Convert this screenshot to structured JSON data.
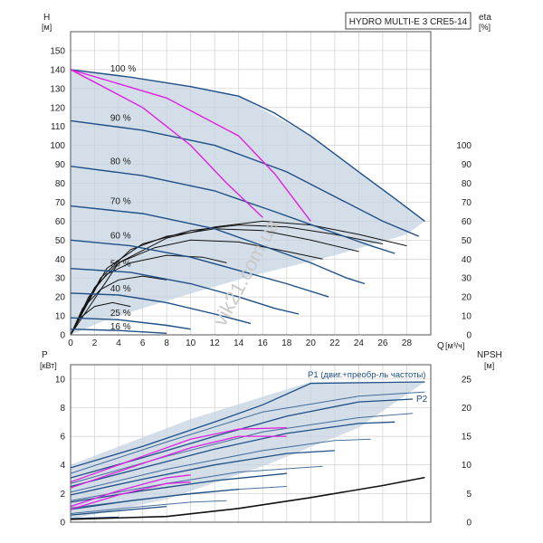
{
  "chart_data": [
    {
      "type": "line",
      "title": "HYDRO MULTI-E 3 CRE5-14",
      "ylabel": "H",
      "yunit": "[м]",
      "y2label": "eta",
      "y2unit": "[%]",
      "xlabel": "Q",
      "xunit": "[м³/ч]",
      "xlim": [
        0,
        30
      ],
      "ylim": [
        0,
        160
      ],
      "y2lim": [
        0,
        160
      ],
      "x_ticks": [
        0,
        2,
        4,
        6,
        8,
        10,
        12,
        14,
        16,
        18,
        20,
        22,
        24,
        26,
        28
      ],
      "y_ticks": [
        0,
        10,
        20,
        30,
        40,
        50,
        60,
        70,
        80,
        90,
        100,
        110,
        120,
        130,
        140,
        150
      ],
      "y2_ticks": [
        0,
        10,
        20,
        30,
        40,
        50,
        60,
        70,
        80,
        90,
        100
      ],
      "speed_labels": [
        {
          "label": "100 %",
          "x": 1.8,
          "y": 138
        },
        {
          "label": "90 %",
          "x": 1.8,
          "y": 112
        },
        {
          "label": "80 %",
          "x": 1.8,
          "y": 89
        },
        {
          "label": "70 %",
          "x": 1.8,
          "y": 68
        },
        {
          "label": "60 %",
          "x": 1.8,
          "y": 50
        },
        {
          "label": "50 %",
          "x": 1.8,
          "y": 35
        },
        {
          "label": "40 %",
          "x": 1.8,
          "y": 22
        },
        {
          "label": "25 %",
          "x": 1.8,
          "y": 9
        },
        {
          "label": "16 %",
          "x": 1.8,
          "y": 2
        }
      ],
      "operating_area": [
        [
          0,
          140
        ],
        [
          10,
          131
        ],
        [
          14,
          126
        ],
        [
          20,
          105
        ],
        [
          29.5,
          60
        ],
        [
          28,
          53
        ],
        [
          22,
          42
        ],
        [
          15,
          31
        ],
        [
          8,
          18
        ],
        [
          3,
          8
        ],
        [
          0,
          0
        ]
      ],
      "pump_curves": [
        {
          "speed": 100,
          "points": [
            [
              0,
              140
            ],
            [
              5,
              136
            ],
            [
              10,
              131
            ],
            [
              14,
              126
            ],
            [
              17,
              117
            ],
            [
              20,
              105
            ],
            [
              24,
              86
            ],
            [
              27,
              72
            ],
            [
              29.5,
              60
            ]
          ]
        },
        {
          "speed": 90,
          "points": [
            [
              0,
              113
            ],
            [
              6,
              108
            ],
            [
              12,
              100
            ],
            [
              18,
              86
            ],
            [
              22,
              73
            ],
            [
              26,
              60
            ],
            [
              29,
              52
            ]
          ]
        },
        {
          "speed": 80,
          "points": [
            [
              0,
              89
            ],
            [
              6,
              84
            ],
            [
              12,
              76
            ],
            [
              17,
              65
            ],
            [
              21,
              56
            ],
            [
              25,
              47
            ],
            [
              27,
              43
            ]
          ]
        },
        {
          "speed": 70,
          "points": [
            [
              0,
              68
            ],
            [
              6,
              64
            ],
            [
              12,
              56
            ],
            [
              16,
              47
            ],
            [
              20,
              38
            ],
            [
              23,
              30
            ],
            [
              24.5,
              27
            ]
          ]
        },
        {
          "speed": 60,
          "points": [
            [
              0,
              50
            ],
            [
              5,
              47
            ],
            [
              10,
              41
            ],
            [
              14,
              34
            ],
            [
              18,
              27
            ],
            [
              21.5,
              20
            ]
          ]
        },
        {
          "speed": 50,
          "points": [
            [
              0,
              35
            ],
            [
              5,
              33
            ],
            [
              10,
              27
            ],
            [
              14,
              20
            ],
            [
              17,
              14
            ],
            [
              19,
              11
            ]
          ]
        },
        {
          "speed": 40,
          "points": [
            [
              0,
              22
            ],
            [
              4,
              21
            ],
            [
              8,
              17
            ],
            [
              12,
              11
            ],
            [
              15,
              6
            ]
          ]
        },
        {
          "speed": 25,
          "points": [
            [
              0,
              9
            ],
            [
              4,
              8
            ],
            [
              8,
              5
            ],
            [
              10,
              3
            ]
          ]
        },
        {
          "speed": 16,
          "points": [
            [
              0,
              3
            ],
            [
              4,
              2.3
            ],
            [
              8,
              0.8
            ]
          ]
        }
      ],
      "efficiency_curves": [
        [
          [
            0,
            0
          ],
          [
            4,
            38
          ],
          [
            8,
            51
          ],
          [
            12,
            57
          ],
          [
            16,
            60
          ],
          [
            20,
            58
          ],
          [
            24,
            53
          ],
          [
            28,
            47
          ]
        ],
        [
          [
            0,
            0
          ],
          [
            3,
            35
          ],
          [
            6,
            48
          ],
          [
            10,
            55
          ],
          [
            14,
            58
          ],
          [
            18,
            57
          ],
          [
            22,
            53
          ],
          [
            26,
            48
          ]
        ],
        [
          [
            0,
            0
          ],
          [
            2.5,
            30
          ],
          [
            5,
            45
          ],
          [
            8,
            52
          ],
          [
            12,
            56
          ],
          [
            16,
            55
          ],
          [
            20,
            50
          ],
          [
            24,
            44
          ]
        ],
        [
          [
            0,
            0
          ],
          [
            2,
            25
          ],
          [
            4,
            38
          ],
          [
            7,
            46
          ],
          [
            10,
            50
          ],
          [
            14,
            49
          ],
          [
            18,
            44
          ],
          [
            21,
            40
          ]
        ],
        [
          [
            0,
            0
          ],
          [
            1.5,
            20
          ],
          [
            3,
            32
          ],
          [
            5,
            38
          ],
          [
            8,
            42
          ],
          [
            11,
            41
          ],
          [
            13,
            38
          ]
        ],
        [
          [
            0,
            0
          ],
          [
            1,
            14
          ],
          [
            2.5,
            24
          ],
          [
            4,
            29
          ],
          [
            6,
            31
          ],
          [
            8,
            29
          ]
        ],
        [
          [
            0,
            0
          ],
          [
            0.8,
            9
          ],
          [
            2,
            15
          ],
          [
            3.5,
            17
          ],
          [
            5,
            15
          ]
        ]
      ],
      "bep_lines": [
        [
          [
            0,
            140
          ],
          [
            6,
            120
          ],
          [
            10,
            100
          ],
          [
            13,
            80
          ],
          [
            16,
            62
          ]
        ],
        [
          [
            0,
            140
          ],
          [
            8,
            125
          ],
          [
            14,
            105
          ],
          [
            17,
            85
          ],
          [
            20,
            60
          ]
        ]
      ],
      "series_colors": {
        "pump": "#1f4f86",
        "efficiency": "#111111",
        "bep": "#e020e0",
        "area": "#c4d3e1"
      }
    },
    {
      "type": "line",
      "ylabel": "P",
      "yunit": "[кВт]",
      "y2label": "NPSH",
      "y2unit": "[м]",
      "xlim": [
        0,
        30
      ],
      "ylim": [
        0,
        11
      ],
      "y2lim": [
        0,
        27.5
      ],
      "y_ticks": [
        0,
        2,
        4,
        6,
        8,
        10
      ],
      "y2_ticks": [
        0,
        5,
        10,
        15,
        20,
        25
      ],
      "p1_label": "P1 (двиг.+преобр-ль частоты)",
      "p2_label": "P2",
      "operating_area": [
        [
          0,
          4
        ],
        [
          10,
          7.2
        ],
        [
          20,
          9.8
        ],
        [
          29.5,
          9.8
        ],
        [
          24,
          6.6
        ],
        [
          16,
          3.9
        ],
        [
          8,
          1.6
        ],
        [
          0,
          0.2
        ]
      ],
      "p1_curves": [
        [
          [
            0,
            3.8
          ],
          [
            6,
            5.3
          ],
          [
            12,
            7
          ],
          [
            16,
            8.2
          ],
          [
            20,
            9.7
          ],
          [
            29.5,
            9.8
          ]
        ],
        [
          [
            0,
            3.1
          ],
          [
            6,
            4.5
          ],
          [
            12,
            6
          ],
          [
            18,
            7.4
          ],
          [
            24,
            8.4
          ],
          [
            28.5,
            8.6
          ]
        ],
        [
          [
            0,
            2.5
          ],
          [
            6,
            3.8
          ],
          [
            12,
            5.1
          ],
          [
            18,
            6.2
          ],
          [
            24,
            6.9
          ],
          [
            27,
            7
          ]
        ],
        [
          [
            0,
            1.9
          ],
          [
            6,
            3
          ],
          [
            12,
            4
          ],
          [
            18,
            4.8
          ],
          [
            22,
            5
          ]
        ],
        [
          [
            0,
            1.4
          ],
          [
            6,
            2.2
          ],
          [
            12,
            2.9
          ],
          [
            18,
            3.4
          ]
        ],
        [
          [
            0,
            0.9
          ],
          [
            5,
            1.5
          ],
          [
            10,
            2
          ],
          [
            14,
            2.3
          ]
        ],
        [
          [
            0,
            0.5
          ],
          [
            4,
            0.8
          ],
          [
            8,
            1.1
          ]
        ],
        [
          [
            0,
            0.25
          ],
          [
            4,
            0.35
          ]
        ]
      ],
      "p2_curves": [
        [
          [
            0,
            3.4
          ],
          [
            8,
            5.6
          ],
          [
            16,
            7.7
          ],
          [
            24,
            8.8
          ],
          [
            29.5,
            9.1
          ]
        ],
        [
          [
            0,
            2.7
          ],
          [
            8,
            4.6
          ],
          [
            16,
            6.3
          ],
          [
            24,
            7.3
          ],
          [
            28.5,
            7.6
          ]
        ],
        [
          [
            0,
            2.1
          ],
          [
            8,
            3.7
          ],
          [
            16,
            5
          ],
          [
            22,
            5.7
          ],
          [
            25,
            5.8
          ]
        ],
        [
          [
            0,
            1.5
          ],
          [
            8,
            2.7
          ],
          [
            14,
            3.5
          ],
          [
            21,
            3.9
          ]
        ],
        [
          [
            0,
            1
          ],
          [
            8,
            1.8
          ],
          [
            14,
            2.3
          ],
          [
            18,
            2.5
          ]
        ],
        [
          [
            0,
            0.6
          ],
          [
            6,
            1.1
          ],
          [
            10,
            1.4
          ],
          [
            13,
            1.5
          ]
        ]
      ],
      "npsh_curve": [
        [
          0,
          0.5
        ],
        [
          8,
          1
        ],
        [
          14,
          2.4
        ],
        [
          20,
          4.3
        ],
        [
          26,
          6.4
        ],
        [
          29.5,
          7.8
        ]
      ],
      "bep_power": [
        [
          [
            0,
            2.8
          ],
          [
            6,
            4.6
          ],
          [
            10,
            5.8
          ],
          [
            14,
            6.5
          ],
          [
            18,
            6.6
          ]
        ],
        [
          [
            0,
            2.4
          ],
          [
            6,
            4.1
          ],
          [
            10,
            5.2
          ],
          [
            14,
            6
          ],
          [
            18,
            6
          ]
        ],
        [
          [
            0,
            1.1
          ],
          [
            4,
            2.2
          ],
          [
            8,
            3.1
          ],
          [
            10,
            3.3
          ]
        ],
        [
          [
            0,
            0.9
          ],
          [
            4,
            1.9
          ],
          [
            8,
            2.7
          ],
          [
            10,
            2.8
          ]
        ]
      ],
      "series_colors": {
        "p1": "#1f4f86",
        "p2": "#1f4f86",
        "npsh": "#111111",
        "bep": "#e020e0",
        "area": "#c4d3e1"
      }
    }
  ],
  "watermark": "vik21.com.ua"
}
